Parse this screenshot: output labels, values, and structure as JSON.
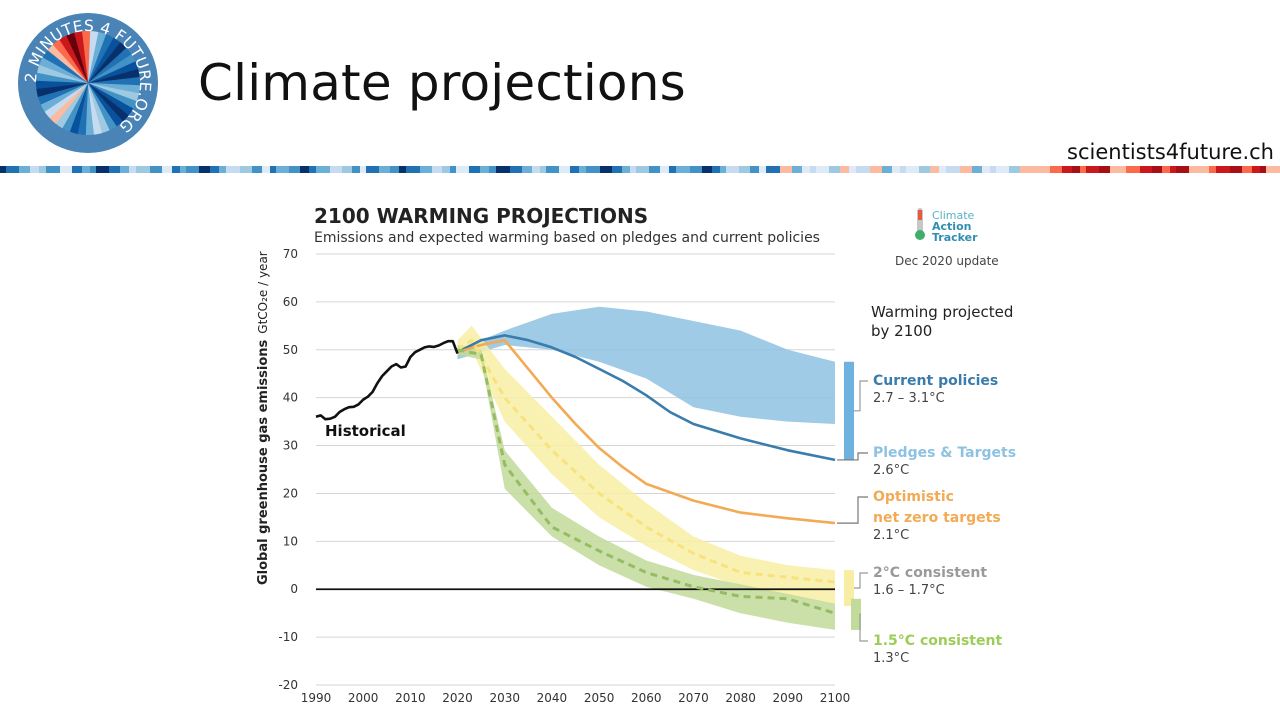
{
  "slide": {
    "title": "Climate projections",
    "site": "scientists4future.ch",
    "logo_text": "2 MINUTES 4 FUTURE.ORG"
  },
  "chart_data": {
    "type": "area",
    "title": "2100 WARMING PROJECTIONS",
    "subtitle": "Emissions and expected warming based on pledges and current policies",
    "source_logo": [
      "Climate",
      "Action",
      "Tracker"
    ],
    "update": "Dec 2020 update",
    "ylabel": "Global greenhouse gas emissions",
    "yunit": "GtCO₂e / year",
    "xlim": [
      1990,
      2100
    ],
    "ylim": [
      -20,
      70
    ],
    "x_ticks": [
      1990,
      2000,
      2010,
      2020,
      2030,
      2040,
      2050,
      2060,
      2070,
      2080,
      2090,
      2100
    ],
    "y_ticks": [
      -20,
      -10,
      0,
      10,
      20,
      30,
      40,
      50,
      60,
      70
    ],
    "grid": true,
    "warming_header": [
      "Warming projected",
      "by 2100"
    ],
    "historical": {
      "name": "Historical",
      "x": [
        1990,
        1991,
        1992,
        1993,
        1994,
        1995,
        1996,
        1997,
        1998,
        1999,
        2000,
        2001,
        2002,
        2003,
        2004,
        2005,
        2006,
        2007,
        2008,
        2009,
        2010,
        2011,
        2012,
        2013,
        2014,
        2015,
        2016,
        2017,
        2018,
        2019,
        2020
      ],
      "y": [
        36,
        36.3,
        35.5,
        35.6,
        36,
        37,
        37.6,
        38,
        38.1,
        38.6,
        39.6,
        40.2,
        41.2,
        43,
        44.5,
        45.5,
        46.5,
        47,
        46.3,
        46.5,
        48.5,
        49.5,
        50,
        50.5,
        50.7,
        50.6,
        50.9,
        51.4,
        51.8,
        51.8,
        49.2
      ]
    },
    "bands": [
      {
        "name": "Current policies",
        "x": [
          2020,
          2030,
          2040,
          2050,
          2060,
          2070,
          2080,
          2090,
          2100
        ],
        "upper": [
          50,
          54,
          57.5,
          59,
          58,
          56,
          54,
          50,
          47.5
        ],
        "lower": [
          48,
          51,
          50,
          47.5,
          44,
          38,
          36,
          35,
          34.5
        ],
        "color": "#8ec2e2"
      },
      {
        "name": "2°C consistent",
        "x": [
          2020,
          2023,
          2030,
          2040,
          2050,
          2060,
          2070,
          2080,
          2090,
          2100
        ],
        "upper": [
          52,
          55,
          46,
          36,
          26,
          18,
          11,
          7,
          5,
          4
        ],
        "lower": [
          49,
          50,
          35,
          24,
          15,
          9,
          4,
          0.5,
          -1.5,
          -3
        ],
        "color": "#f7eea3"
      },
      {
        "name": "1.5°C consistent",
        "x": [
          2020,
          2025,
          2030,
          2040,
          2050,
          2060,
          2070,
          2080,
          2090,
          2100
        ],
        "upper": [
          51,
          50,
          29,
          17,
          11,
          6,
          3,
          1,
          -1,
          -3
        ],
        "lower": [
          49,
          48,
          21,
          11,
          5,
          0.5,
          -2,
          -5,
          -7,
          -8.5
        ],
        "color": "#c2db9a"
      }
    ],
    "series": [
      {
        "name": "Current policies",
        "x": [
          2020,
          2025,
          2030,
          2035,
          2040,
          2045,
          2050,
          2055,
          2060,
          2065,
          2070,
          2080,
          2090,
          2100
        ],
        "y": [
          49.5,
          52,
          53,
          52,
          50.5,
          48.5,
          46,
          43.5,
          40.5,
          37,
          34.5,
          31.5,
          29,
          27
        ],
        "color": "#3a7cab",
        "dashed": false
      },
      {
        "name": "Optimistic net zero targets",
        "x": [
          2020,
          2025,
          2030,
          2035,
          2040,
          2045,
          2050,
          2055,
          2060,
          2070,
          2080,
          2090,
          2100
        ],
        "y": [
          49.5,
          51,
          52,
          46,
          40,
          34.5,
          29.5,
          25.5,
          22,
          18.5,
          16,
          14.8,
          13.8
        ],
        "color": "#f3aa54",
        "dashed": false
      },
      {
        "name": "2°C consistent",
        "x": [
          2020,
          2023,
          2030,
          2040,
          2050,
          2060,
          2070,
          2080,
          2090,
          2100
        ],
        "y": [
          50,
          52,
          40,
          29,
          20,
          13,
          7.5,
          3.5,
          2.5,
          1.5
        ],
        "color": "#f7e27e",
        "dashed": true
      },
      {
        "name": "1.5°C consistent",
        "x": [
          2020,
          2025,
          2030,
          2040,
          2050,
          2060,
          2070,
          2080,
          2090,
          2100
        ],
        "y": [
          50,
          49,
          26,
          13,
          8,
          3.5,
          0.5,
          -1.5,
          -2,
          -5
        ],
        "color": "#95bc62",
        "dashed": true
      }
    ],
    "legend": [
      {
        "label": "Current policies",
        "range": "2.7 – 3.1°C",
        "color": "#3a7cab",
        "marker": "bar",
        "marker_color": "#6fb1df",
        "range_y": [
          27,
          47.5
        ],
        "leader_y": 38
      },
      {
        "label": "Pledges & Targets",
        "range": "2.6°C",
        "color": "#8ec2e2",
        "marker": "line",
        "marker_color": "#777777",
        "leader_y": 27
      },
      {
        "label": "Optimistic",
        "label2": "net zero targets",
        "range": "2.1°C",
        "color": "#f3aa54",
        "marker": "line",
        "marker_color": "#777777",
        "leader_y": 13.8
      },
      {
        "label": "2°C consistent",
        "range": "1.6 – 1.7°C",
        "color": "#9a9a9a",
        "marker": "bar",
        "marker_color": "#f7eea3",
        "range_y": [
          -3.5,
          4
        ],
        "leader_y": 0.5
      },
      {
        "label": "1.5°C consistent",
        "range": "1.3°C",
        "color": "#9ccd58",
        "marker": "bar",
        "marker_color": "#c2db9a",
        "range_y": [
          -8.5,
          -2
        ],
        "leader_y": -5
      }
    ]
  }
}
